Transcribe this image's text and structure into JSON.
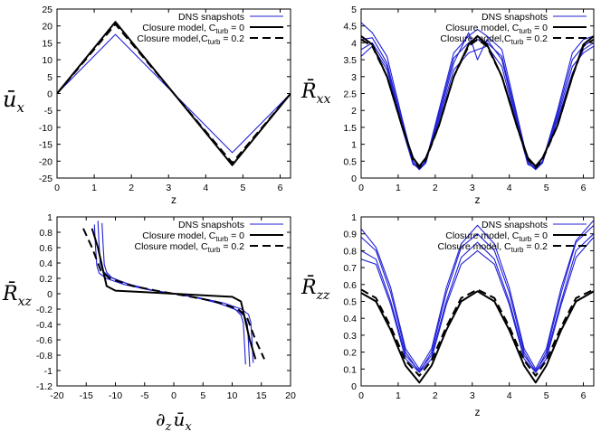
{
  "chart_data": [
    {
      "type": "line",
      "panel": "top-left",
      "ylabel": "ū_x",
      "ylabel_main": "ū",
      "ylabel_sub": "x",
      "xlabel": "z",
      "xlim": [
        0,
        6.28
      ],
      "ylim": [
        -25,
        25
      ],
      "xticks": [
        0,
        1,
        2,
        3,
        4,
        5,
        6
      ],
      "yticks": [
        -25,
        -20,
        -15,
        -10,
        -5,
        0,
        5,
        10,
        15,
        20,
        25
      ],
      "legend": {
        "placement": "top-right",
        "entries": [
          "DNS snapshots",
          "Closure model, C_turb = 0",
          "Closure model,C_turb = 0.2"
        ],
        "entries_display": [
          {
            "main": "DNS snapshots"
          },
          {
            "main": "Closure model, C",
            "sub": "turb",
            "tail": " = 0"
          },
          {
            "main": "Closure model,C",
            "sub": "turb",
            "tail": " = 0.2"
          }
        ]
      },
      "series": [
        {
          "name": "DNS snapshots",
          "style": "blue",
          "x": [
            0,
            1.571,
            4.712,
            6.283
          ],
          "y": [
            0,
            17.5,
            -17.5,
            0
          ]
        },
        {
          "name": "Closure model, C_turb = 0",
          "style": "black-solid",
          "x": [
            0,
            1.571,
            4.712,
            6.283
          ],
          "y": [
            0,
            21.2,
            -21.2,
            0
          ]
        },
        {
          "name": "Closure model, C_turb = 0.2",
          "style": "black-dashed",
          "x": [
            0,
            1.571,
            4.712,
            6.283
          ],
          "y": [
            0,
            20.5,
            -20.5,
            0
          ]
        }
      ]
    },
    {
      "type": "line",
      "panel": "top-right",
      "ylabel": "R̄_xx",
      "ylabel_main": "R̄",
      "ylabel_sub": "xx",
      "xlabel": "z",
      "xlim": [
        0,
        6.28
      ],
      "ylim": [
        0,
        5
      ],
      "xticks": [
        0,
        1,
        2,
        3,
        4,
        5,
        6
      ],
      "yticks": [
        0,
        0.5,
        1,
        1.5,
        2,
        2.5,
        3,
        3.5,
        4,
        4.5,
        5
      ],
      "legend": {
        "placement": "top-right",
        "entries": [
          "DNS snapshots",
          "Closure model, C_turb = 0",
          "Closure model,C_turb = 0.2"
        ],
        "entries_display": [
          {
            "main": "DNS snapshots"
          },
          {
            "main": "Closure model, C",
            "sub": "turb",
            "tail": " = 0"
          },
          {
            "main": "Closure model,C",
            "sub": "turb",
            "tail": " = 0.2"
          }
        ]
      },
      "series": [
        {
          "name": "DNS snapshots",
          "style": "blue",
          "x": [
            0,
            0.3,
            0.7,
            1.1,
            1.4,
            1.571,
            1.75,
            2.1,
            2.5,
            2.9,
            3.14,
            3.4,
            3.8,
            4.2,
            4.5,
            4.712,
            4.9,
            5.3,
            5.7,
            6.0,
            6.28
          ],
          "y": [
            4.1,
            4.15,
            3.4,
            1.7,
            0.45,
            0.25,
            0.45,
            1.9,
            3.55,
            4.0,
            4.1,
            4.0,
            3.6,
            1.8,
            0.45,
            0.25,
            0.45,
            1.9,
            3.5,
            3.9,
            4.1
          ]
        },
        {
          "name": "DNS snapshots",
          "style": "blue",
          "x": [
            0,
            0.3,
            0.7,
            1.1,
            1.4,
            1.571,
            1.75,
            2.1,
            2.5,
            2.9,
            3.14,
            3.4,
            3.8,
            4.2,
            4.5,
            4.712,
            4.9,
            5.3,
            5.7,
            6.0,
            6.28
          ],
          "y": [
            3.6,
            3.9,
            3.2,
            1.5,
            0.4,
            0.3,
            0.5,
            1.7,
            3.2,
            3.7,
            3.8,
            3.9,
            3.3,
            1.6,
            0.4,
            0.3,
            0.5,
            1.7,
            3.1,
            3.8,
            4.0
          ]
        },
        {
          "name": "DNS snapshots",
          "style": "blue",
          "x": [
            0,
            0.3,
            0.7,
            1.1,
            1.4,
            1.571,
            1.75,
            2.1,
            2.5,
            2.9,
            3.14,
            3.4,
            3.8,
            4.2,
            4.5,
            4.712,
            4.9,
            5.3,
            5.7,
            6.0,
            6.28
          ],
          "y": [
            4.6,
            4.3,
            3.6,
            1.8,
            0.5,
            0.3,
            0.5,
            2.0,
            3.7,
            4.2,
            4.4,
            4.2,
            3.8,
            1.9,
            0.5,
            0.3,
            0.5,
            2.0,
            3.7,
            4.1,
            4.2
          ]
        },
        {
          "name": "DNS snapshots",
          "style": "blue",
          "x": [
            0,
            0.3,
            0.7,
            1.1,
            1.4,
            1.571,
            1.75,
            2.1,
            2.5,
            2.9,
            3.14,
            3.4,
            3.8,
            4.2,
            4.5,
            4.712,
            4.9,
            5.3,
            5.7,
            6.0,
            6.28
          ],
          "y": [
            3.8,
            4.0,
            3.3,
            1.6,
            0.42,
            0.28,
            0.48,
            1.8,
            3.4,
            4.3,
            3.5,
            4.1,
            3.5,
            1.7,
            0.42,
            0.28,
            0.48,
            1.8,
            3.3,
            3.7,
            3.9
          ]
        },
        {
          "name": "Closure model, C_turb = 0",
          "style": "black-solid",
          "x": [
            0,
            0.3,
            0.7,
            1.1,
            1.4,
            1.571,
            1.75,
            2.1,
            2.5,
            2.9,
            3.14,
            3.4,
            3.8,
            4.2,
            4.5,
            4.712,
            4.9,
            5.3,
            5.7,
            6.0,
            6.28
          ],
          "y": [
            4.2,
            3.95,
            3.0,
            1.55,
            0.6,
            0.35,
            0.6,
            1.55,
            3.0,
            3.95,
            4.2,
            3.95,
            3.0,
            1.55,
            0.6,
            0.35,
            0.6,
            1.55,
            3.0,
            3.95,
            4.2
          ]
        },
        {
          "name": "Closure model, C_turb = 0.2",
          "style": "black-dashed",
          "x": [
            0,
            0.3,
            0.7,
            1.1,
            1.4,
            1.571,
            1.75,
            2.1,
            2.5,
            2.9,
            3.14,
            3.4,
            3.8,
            4.2,
            4.5,
            4.712,
            4.9,
            5.3,
            5.7,
            6.0,
            6.28
          ],
          "y": [
            4.1,
            3.9,
            3.0,
            1.55,
            0.55,
            0.3,
            0.55,
            1.55,
            3.0,
            3.9,
            4.1,
            3.9,
            3.0,
            1.55,
            0.55,
            0.3,
            0.55,
            1.55,
            3.0,
            3.9,
            4.1
          ]
        }
      ]
    },
    {
      "type": "line",
      "panel": "bottom-left",
      "ylabel": "R̄_xz",
      "ylabel_main": "R̄",
      "ylabel_sub": "xz",
      "xlabel": "∂_z ū_x",
      "xlabel_main": "∂",
      "xlabel_sub": "z",
      "xlabel_main2": "ū",
      "xlabel_sub2": "x",
      "xlim": [
        -20,
        20
      ],
      "ylim": [
        -1.2,
        1
      ],
      "xticks": [
        -20,
        -15,
        -10,
        -5,
        0,
        5,
        10,
        15,
        20
      ],
      "yticks": [
        -1.2,
        -1,
        -0.8,
        -0.6,
        -0.4,
        -0.2,
        0,
        0.2,
        0.4,
        0.6,
        0.8,
        1
      ],
      "legend": {
        "placement": "top-right",
        "entries": [
          "DNS snapshots",
          "Closure model, C_turb = 0",
          "Closure model, C_turb = 0.2"
        ],
        "entries_display": [
          {
            "main": "DNS snapshots"
          },
          {
            "main": "Closure model, C",
            "sub": "turb",
            "tail": " = 0"
          },
          {
            "main": "Closure model, C",
            "sub": "turb",
            "tail": " = 0.2"
          }
        ]
      },
      "series": [
        {
          "name": "DNS snapshots",
          "style": "blue",
          "x": [
            -13.0,
            -12.8,
            -12.6,
            -12.2,
            -11.0,
            -8.0,
            -4.0,
            0,
            4.0,
            8.0,
            11.0,
            12.2,
            12.6,
            12.8,
            13.0
          ],
          "y": [
            0.95,
            0.65,
            0.4,
            0.3,
            0.22,
            0.13,
            0.05,
            0,
            -0.05,
            -0.13,
            -0.22,
            -0.3,
            -0.4,
            -0.65,
            -0.95
          ]
        },
        {
          "name": "DNS snapshots",
          "style": "blue",
          "x": [
            -12.3,
            -12.1,
            -11.9,
            -11.5,
            -10.5,
            -7.5,
            -3.8,
            0,
            3.8,
            7.5,
            10.5,
            11.5,
            11.9,
            12.1,
            12.3
          ],
          "y": [
            0.92,
            0.62,
            0.38,
            0.28,
            0.2,
            0.12,
            0.05,
            0,
            -0.05,
            -0.12,
            -0.2,
            -0.28,
            -0.38,
            -0.62,
            -0.92
          ]
        },
        {
          "name": "DNS snapshots",
          "style": "blue",
          "x": [
            -13.6,
            -13.4,
            -13.2,
            -12.8,
            -11.6,
            -8.5,
            -4.2,
            0,
            4.2,
            8.5,
            11.6,
            12.8,
            13.2,
            13.4,
            13.6
          ],
          "y": [
            0.9,
            0.6,
            0.37,
            0.27,
            0.2,
            0.12,
            0.05,
            0,
            -0.05,
            -0.12,
            -0.2,
            -0.27,
            -0.37,
            -0.6,
            -0.9
          ]
        },
        {
          "name": "Closure model, C_turb = 0",
          "style": "black-solid",
          "x": [
            -14.0,
            -13.0,
            -11.5,
            -10.0,
            -5.0,
            0,
            5.0,
            10.0,
            11.5,
            13.0,
            14.0
          ],
          "y": [
            0.85,
            0.6,
            0.1,
            0.04,
            0.02,
            0,
            -0.02,
            -0.04,
            -0.1,
            -0.6,
            -0.85
          ]
        },
        {
          "name": "Closure model, C_turb = 0.2",
          "style": "black-dashed",
          "x": [
            -15.5,
            -14.0,
            -12.5,
            -11.0,
            -7.0,
            -3.0,
            0,
            3.0,
            7.0,
            11.0,
            12.5,
            14.0,
            15.5
          ],
          "y": [
            0.85,
            0.6,
            0.3,
            0.2,
            0.1,
            0.04,
            0,
            -0.04,
            -0.1,
            -0.2,
            -0.3,
            -0.6,
            -0.85
          ]
        }
      ]
    },
    {
      "type": "line",
      "panel": "bottom-right",
      "ylabel": "R̄_zz",
      "ylabel_main": "R̄",
      "ylabel_sub": "zz",
      "xlabel": "z",
      "xlim": [
        0,
        6.28
      ],
      "ylim": [
        0,
        1
      ],
      "xticks": [
        0,
        1,
        2,
        3,
        4,
        5,
        6
      ],
      "yticks": [
        0,
        0.1,
        0.2,
        0.3,
        0.4,
        0.5,
        0.6,
        0.7,
        0.8,
        0.9,
        1
      ],
      "legend": {
        "placement": "top-right",
        "entries": [
          "DNS snapshots",
          "Closure model, C_turb = 0",
          "Closure model, C_turb = 0.2"
        ],
        "entries_display": [
          {
            "main": "DNS snapshots"
          },
          {
            "main": "Closure model, C",
            "sub": "turb",
            "tail": " = 0"
          },
          {
            "main": "Closure model, C",
            "sub": "turb",
            "tail": " = 0.2"
          }
        ]
      },
      "series": [
        {
          "name": "DNS snapshots",
          "style": "blue",
          "x": [
            0,
            0.4,
            0.8,
            1.2,
            1.571,
            1.9,
            2.3,
            2.7,
            3.14,
            3.6,
            4.0,
            4.4,
            4.712,
            5.0,
            5.4,
            5.8,
            6.28
          ],
          "y": [
            0.88,
            0.8,
            0.55,
            0.2,
            0.08,
            0.2,
            0.55,
            0.82,
            0.9,
            0.8,
            0.55,
            0.2,
            0.08,
            0.2,
            0.55,
            0.85,
            0.95
          ]
        },
        {
          "name": "DNS snapshots",
          "style": "blue",
          "x": [
            0,
            0.4,
            0.8,
            1.2,
            1.571,
            1.9,
            2.3,
            2.7,
            3.14,
            3.6,
            4.0,
            4.4,
            4.712,
            5.0,
            5.4,
            5.8,
            6.28
          ],
          "y": [
            0.8,
            0.75,
            0.5,
            0.18,
            0.09,
            0.18,
            0.5,
            0.76,
            0.85,
            0.75,
            0.5,
            0.18,
            0.09,
            0.18,
            0.5,
            0.8,
            0.9
          ]
        },
        {
          "name": "DNS snapshots",
          "style": "blue",
          "x": [
            0,
            0.4,
            0.8,
            1.2,
            1.571,
            1.9,
            2.3,
            2.7,
            3.14,
            3.6,
            4.0,
            4.4,
            4.712,
            5.0,
            5.4,
            5.8,
            6.28
          ],
          "y": [
            0.93,
            0.82,
            0.58,
            0.22,
            0.1,
            0.22,
            0.58,
            0.84,
            0.95,
            0.84,
            0.58,
            0.22,
            0.1,
            0.22,
            0.58,
            0.86,
            0.98
          ]
        },
        {
          "name": "DNS snapshots",
          "style": "blue",
          "x": [
            0,
            0.4,
            0.8,
            1.2,
            1.571,
            1.9,
            2.3,
            2.7,
            3.14,
            3.6,
            4.0,
            4.4,
            4.712,
            5.0,
            5.4,
            5.8,
            6.28
          ],
          "y": [
            0.75,
            0.72,
            0.48,
            0.16,
            0.08,
            0.16,
            0.48,
            0.72,
            0.8,
            0.72,
            0.48,
            0.16,
            0.08,
            0.16,
            0.48,
            0.76,
            0.88
          ]
        },
        {
          "name": "Closure model, C_turb = 0",
          "style": "black-solid",
          "x": [
            0,
            0.4,
            0.8,
            1.2,
            1.571,
            1.9,
            2.3,
            2.7,
            3.14,
            3.6,
            4.0,
            4.4,
            4.712,
            5.0,
            5.4,
            5.8,
            6.28
          ],
          "y": [
            0.55,
            0.5,
            0.33,
            0.12,
            0.02,
            0.12,
            0.33,
            0.5,
            0.56,
            0.5,
            0.33,
            0.12,
            0.02,
            0.12,
            0.33,
            0.5,
            0.56
          ]
        },
        {
          "name": "Closure model, C_turb = 0.2",
          "style": "black-dashed",
          "x": [
            0,
            0.4,
            0.8,
            1.2,
            1.571,
            1.9,
            2.3,
            2.7,
            3.14,
            3.6,
            4.0,
            4.4,
            4.712,
            5.0,
            5.4,
            5.8,
            6.28
          ],
          "y": [
            0.57,
            0.52,
            0.35,
            0.15,
            0.06,
            0.15,
            0.35,
            0.52,
            0.57,
            0.52,
            0.35,
            0.15,
            0.06,
            0.15,
            0.35,
            0.52,
            0.57
          ]
        }
      ]
    }
  ]
}
